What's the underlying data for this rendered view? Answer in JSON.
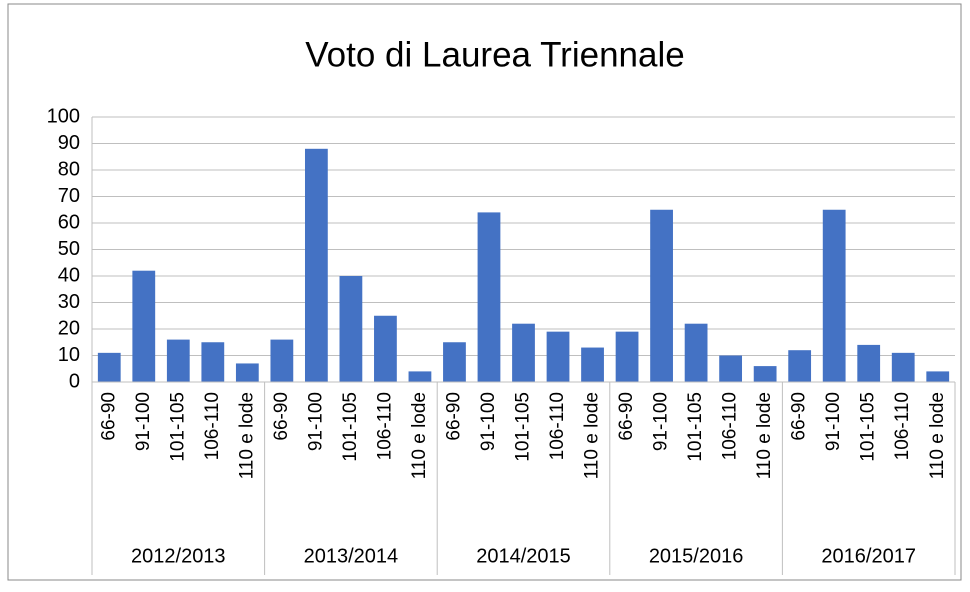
{
  "chart_data": {
    "type": "bar",
    "title": "Voto di Laurea Triennale",
    "color": "#4472c4",
    "ylim": [
      0,
      100
    ],
    "yticks": [
      0,
      10,
      20,
      30,
      40,
      50,
      60,
      70,
      80,
      90,
      100
    ],
    "grid": true,
    "groups": [
      {
        "label": "2012/2013",
        "categories": [
          "66-90",
          "91-100",
          "101-105",
          "106-110",
          "110 e lode"
        ],
        "values": [
          11,
          42,
          16,
          15,
          7
        ]
      },
      {
        "label": "2013/2014",
        "categories": [
          "66-90",
          "91-100",
          "101-105",
          "106-110",
          "110 e lode"
        ],
        "values": [
          16,
          88,
          40,
          25,
          4
        ]
      },
      {
        "label": "2014/2015",
        "categories": [
          "66-90",
          "91-100",
          "101-105",
          "106-110",
          "110 e lode"
        ],
        "values": [
          15,
          64,
          22,
          19,
          13
        ]
      },
      {
        "label": "2015/2016",
        "categories": [
          "66-90",
          "91-100",
          "101-105",
          "106-110",
          "110 e lode"
        ],
        "values": [
          19,
          65,
          22,
          10,
          6
        ]
      },
      {
        "label": "2016/2017",
        "categories": [
          "66-90",
          "91-100",
          "101-105",
          "106-110",
          "110 e lode"
        ],
        "values": [
          12,
          65,
          14,
          11,
          4
        ]
      }
    ]
  }
}
